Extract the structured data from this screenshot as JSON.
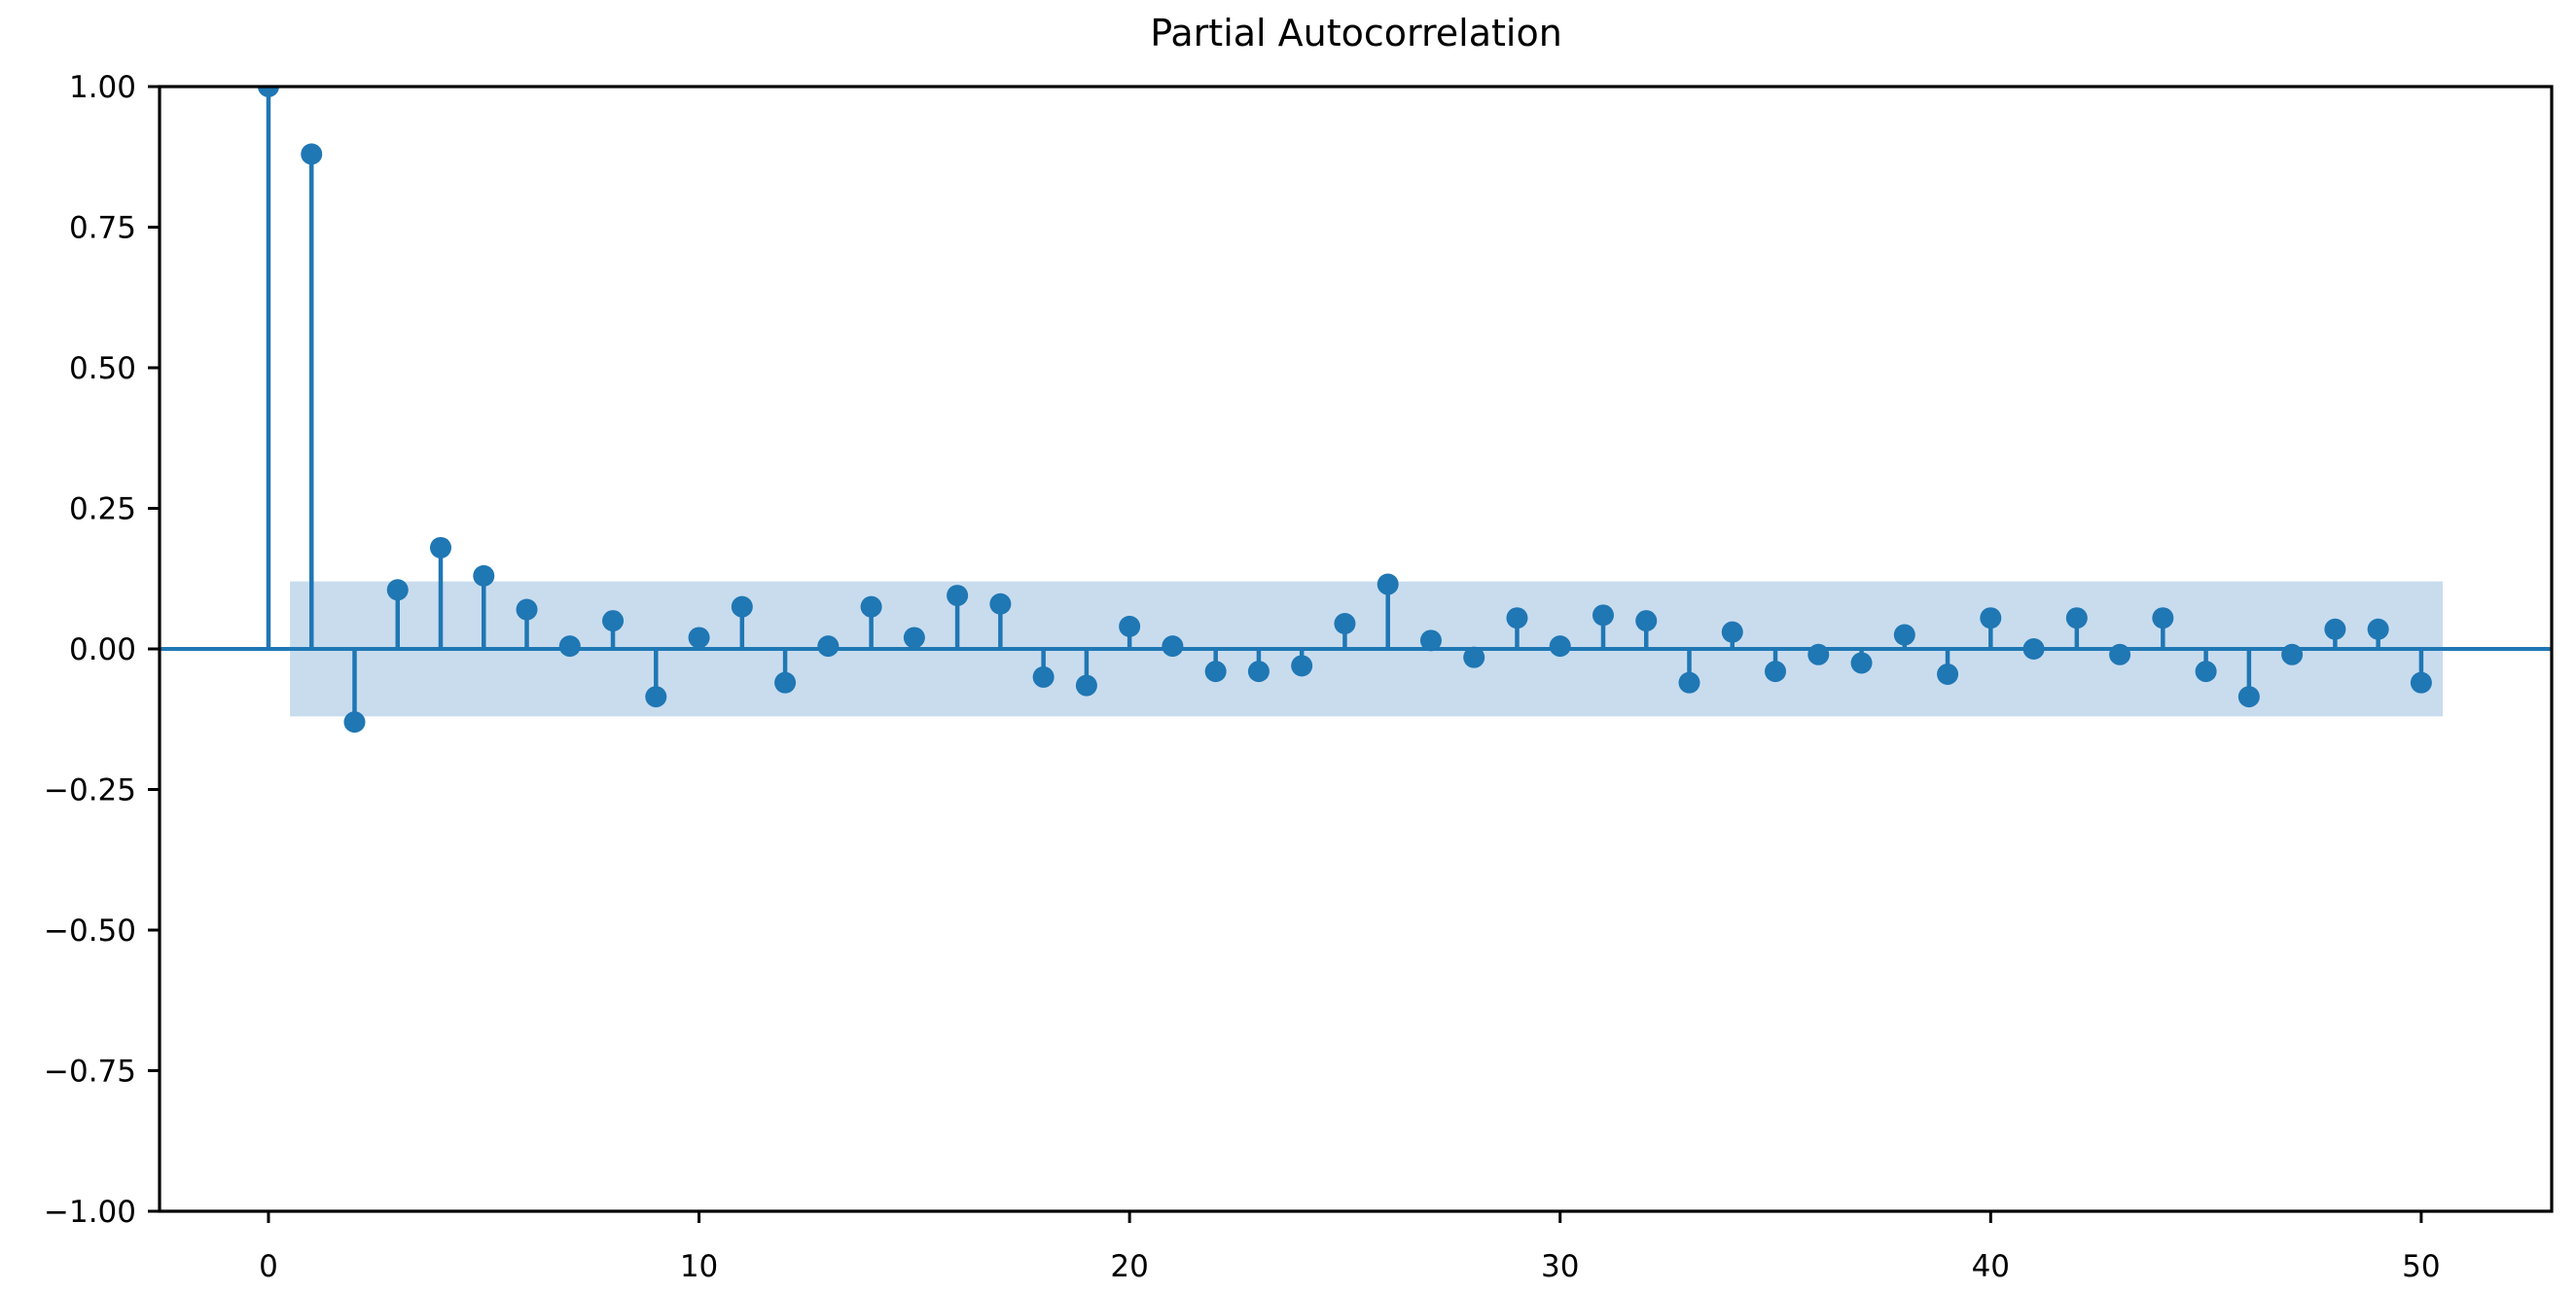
{
  "chart_data": {
    "type": "stem",
    "title": "Partial Autocorrelation",
    "xlabel": "",
    "ylabel": "",
    "x": [
      0,
      1,
      2,
      3,
      4,
      5,
      6,
      7,
      8,
      9,
      10,
      11,
      12,
      13,
      14,
      15,
      16,
      17,
      18,
      19,
      20,
      21,
      22,
      23,
      24,
      25,
      26,
      27,
      28,
      29,
      30,
      31,
      32,
      33,
      34,
      35,
      36,
      37,
      38,
      39,
      40,
      41,
      42,
      43,
      44,
      45,
      46,
      47,
      48,
      49,
      50
    ],
    "values": [
      1.0,
      0.88,
      -0.13,
      0.105,
      0.18,
      0.13,
      0.07,
      0.005,
      0.05,
      -0.085,
      0.02,
      0.075,
      -0.06,
      0.005,
      0.075,
      0.02,
      0.095,
      0.08,
      -0.05,
      -0.065,
      0.04,
      0.005,
      -0.04,
      -0.04,
      -0.03,
      0.045,
      0.115,
      0.015,
      -0.015,
      0.055,
      0.005,
      0.06,
      0.05,
      -0.06,
      0.03,
      -0.04,
      -0.01,
      -0.025,
      0.025,
      -0.045,
      0.055,
      0.0,
      0.055,
      -0.01,
      0.055,
      -0.04,
      -0.085,
      -0.01,
      0.035,
      0.035,
      -0.06
    ],
    "confidence_band": 0.12,
    "confidence_band_x_range": [
      0.5,
      50.5
    ],
    "xlim": [
      -2.53,
      53.03
    ],
    "ylim": [
      -1.0,
      1.0
    ],
    "x_ticks": [
      0,
      10,
      20,
      30,
      40,
      50
    ],
    "y_ticks": [
      -1.0,
      -0.75,
      -0.5,
      -0.25,
      0.0,
      0.25,
      0.5,
      0.75,
      1.0
    ],
    "grid": false,
    "legend": false,
    "colors": {
      "stem": "#1f77b4",
      "marker": "#1f77b4",
      "zero_line": "#1f77b4",
      "ci_band": "#c9dcee",
      "axis": "#000000",
      "background": "#ffffff"
    }
  }
}
